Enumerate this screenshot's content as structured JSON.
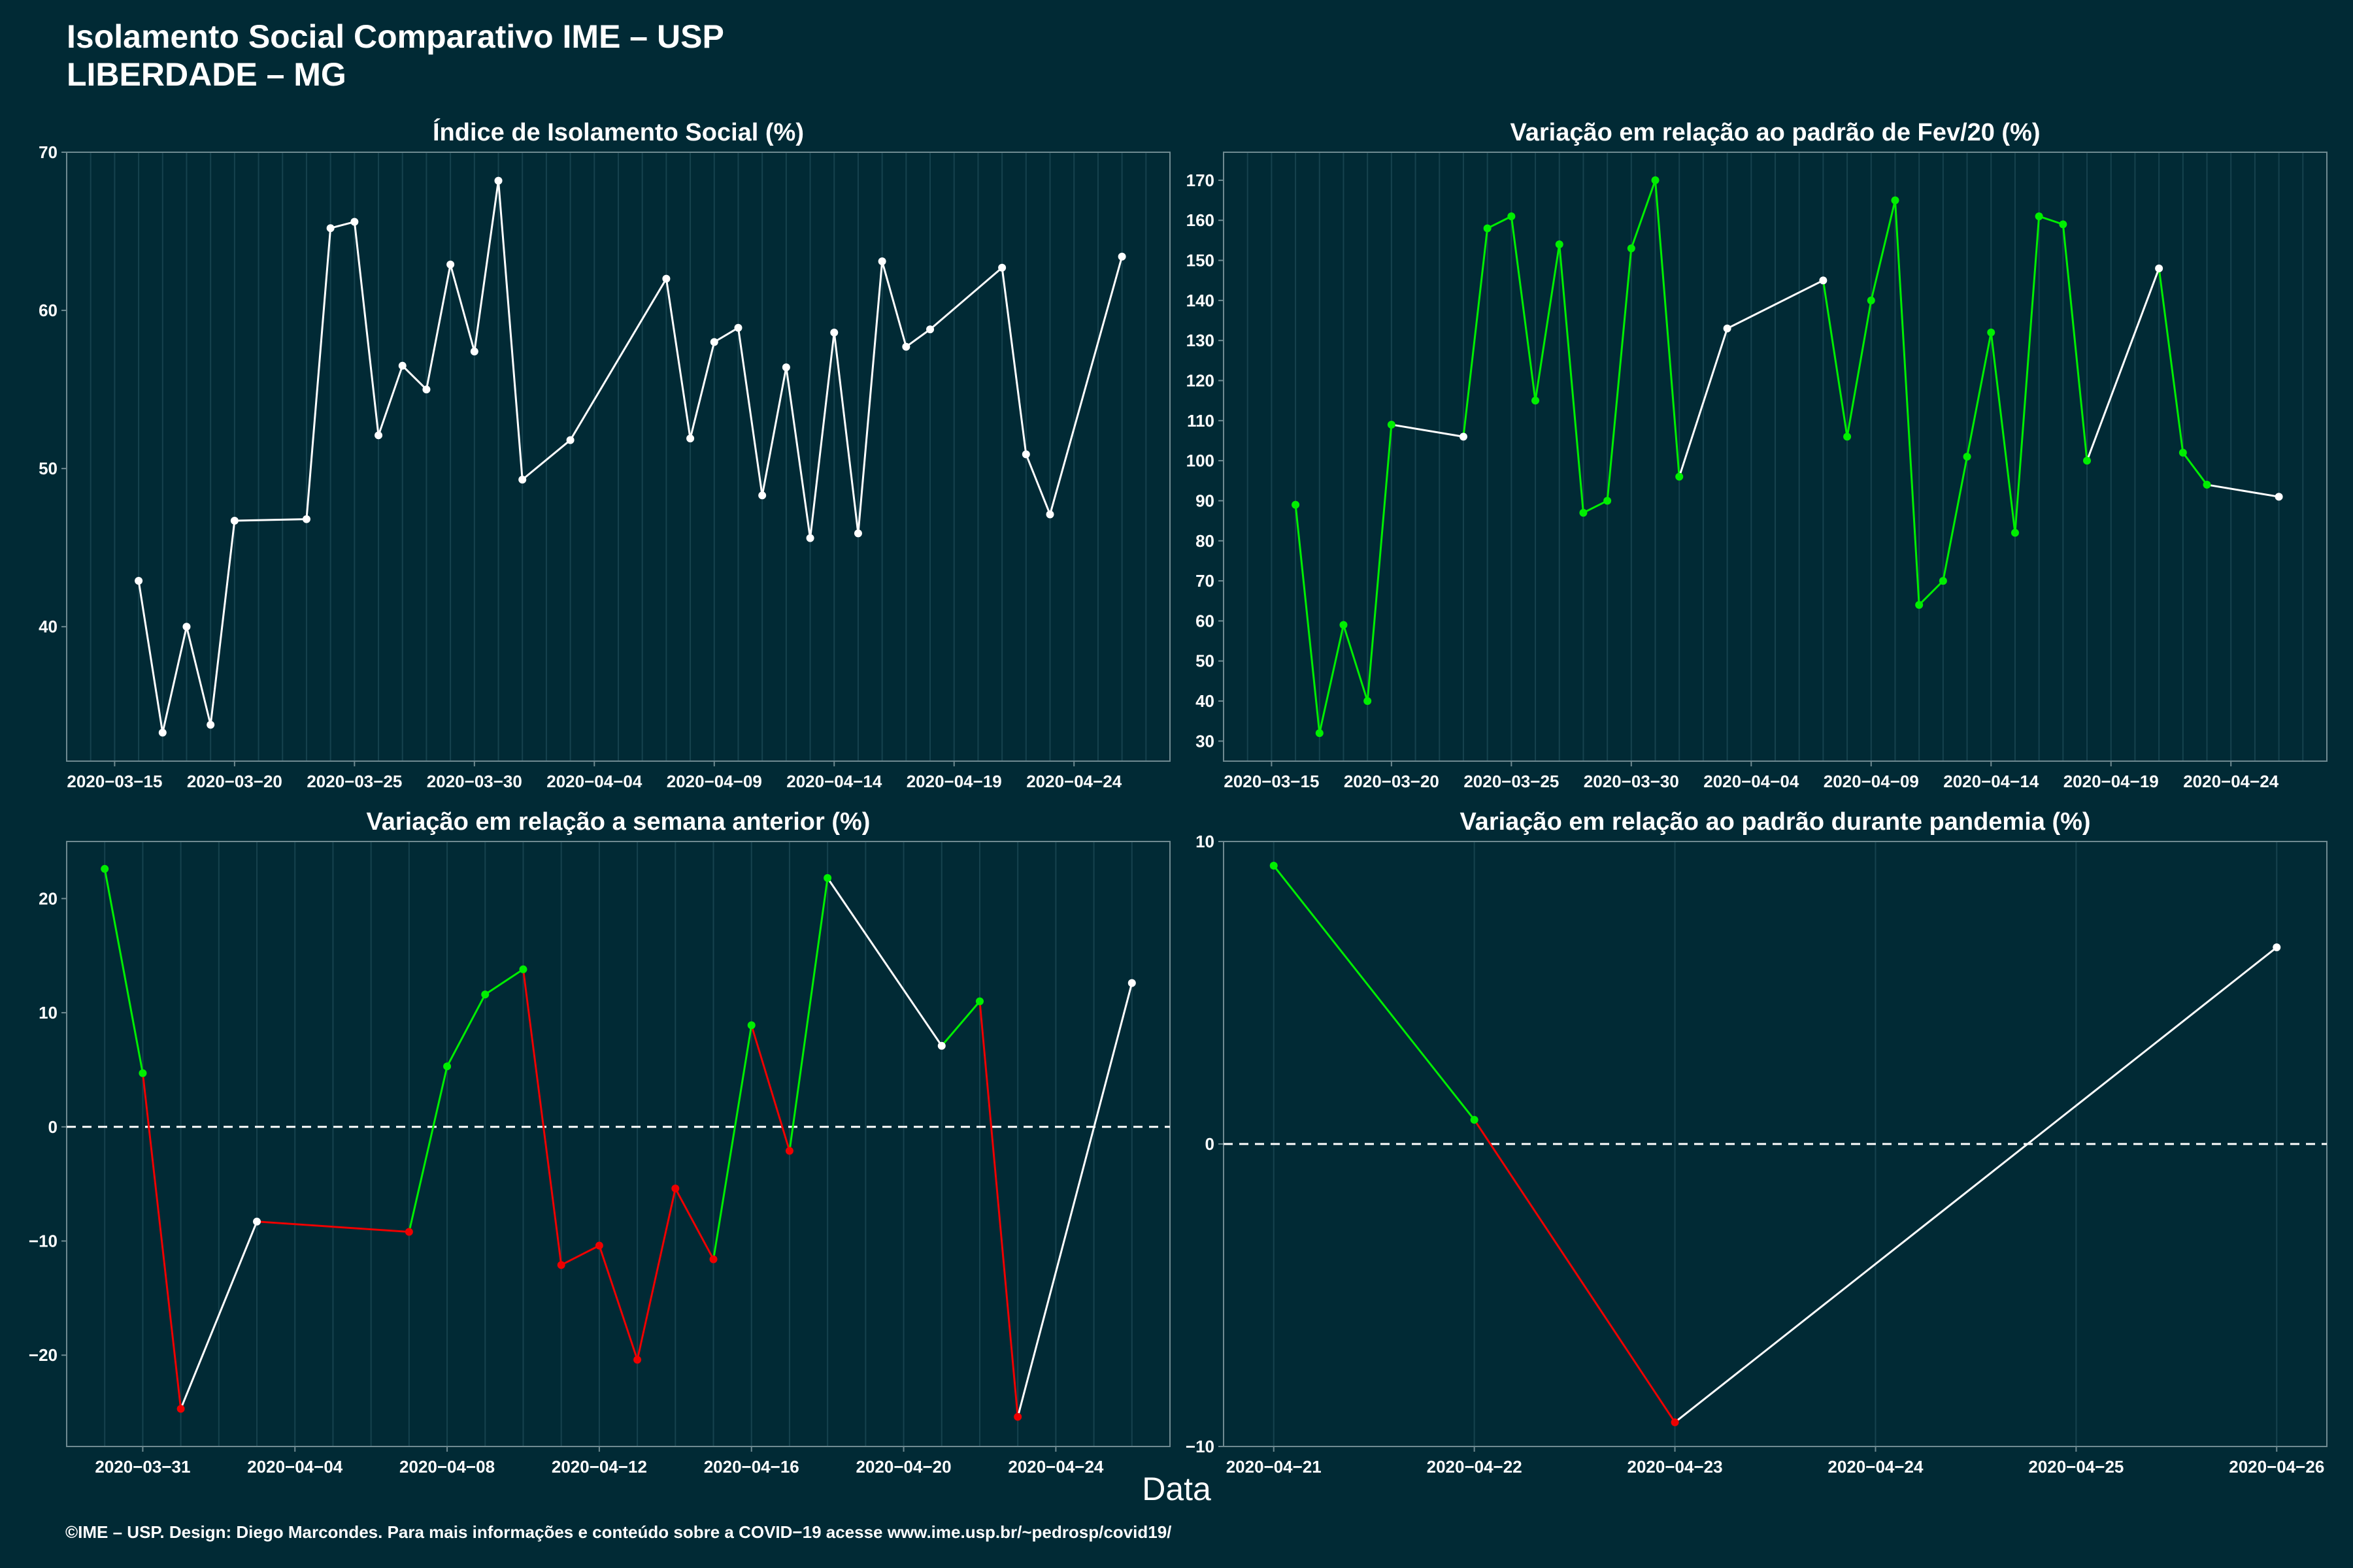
{
  "header": {
    "title_line1": "Isolamento Social Comparativo IME – USP",
    "title_line2": "LIBERDADE – MG"
  },
  "x_axis_title": "Data",
  "footer": "©IME – USP. Design: Diego Marcondes. Para mais informações e conteúdo sobre a COVID−19 acesse www.ime.usp.br/~pedrosp/covid19/",
  "colors": {
    "background": "#012a35",
    "neutral": "#ffffff",
    "increase": "#00ee00",
    "decrease": "#ee0000",
    "grid": "#16424e",
    "axis": "#6f8a91"
  },
  "chart_data": [
    {
      "type": "line",
      "title": "Índice de Isolamento Social (%)",
      "xlabel": "",
      "ylabel": "",
      "xlim": [
        "2020-03-13",
        "2020-04-28"
      ],
      "ylim": [
        31.5,
        70
      ],
      "yticks": [
        40,
        50,
        60,
        70
      ],
      "xticks": [
        "2020-03-15",
        "2020-03-20",
        "2020-03-25",
        "2020-03-30",
        "2020-04-04",
        "2020-04-09",
        "2020-04-14",
        "2020-04-19",
        "2020-04-24"
      ],
      "grid": true,
      "series": [
        {
          "color": "neutral",
          "points": [
            [
              "2020-03-16",
              42.9
            ],
            [
              "2020-03-17",
              33.3
            ],
            [
              "2020-03-18",
              40.0
            ],
            [
              "2020-03-19",
              33.8
            ],
            [
              "2020-03-20",
              46.7
            ],
            [
              "2020-03-23",
              46.8
            ],
            [
              "2020-03-24",
              65.2
            ],
            [
              "2020-03-25",
              65.6
            ],
            [
              "2020-03-26",
              52.1
            ],
            [
              "2020-03-27",
              56.5
            ],
            [
              "2020-03-28",
              55.0
            ],
            [
              "2020-03-29",
              62.9
            ],
            [
              "2020-03-30",
              57.4
            ],
            [
              "2020-03-31",
              68.2
            ],
            [
              "2020-04-01",
              49.3
            ],
            [
              "2020-04-03",
              51.8
            ],
            [
              "2020-04-07",
              62.0
            ],
            [
              "2020-04-08",
              51.9
            ],
            [
              "2020-04-09",
              58.0
            ],
            [
              "2020-04-10",
              58.9
            ],
            [
              "2020-04-11",
              48.3
            ],
            [
              "2020-04-12",
              56.4
            ],
            [
              "2020-04-13",
              45.6
            ],
            [
              "2020-04-14",
              58.6
            ],
            [
              "2020-04-15",
              45.9
            ],
            [
              "2020-04-16",
              63.1
            ],
            [
              "2020-04-17",
              57.7
            ],
            [
              "2020-04-18",
              58.8
            ],
            [
              "2020-04-21",
              62.7
            ],
            [
              "2020-04-22",
              50.9
            ],
            [
              "2020-04-23",
              47.1
            ],
            [
              "2020-04-26",
              63.4
            ]
          ]
        }
      ]
    },
    {
      "type": "line",
      "title": "Variação em relação ao padrão de Fev/20 (%)",
      "xlabel": "",
      "ylabel": "",
      "xlim": [
        "2020-03-13",
        "2020-04-28"
      ],
      "ylim": [
        25,
        177
      ],
      "yticks": [
        30,
        40,
        50,
        60,
        70,
        80,
        90,
        100,
        110,
        120,
        130,
        140,
        150,
        160,
        170
      ],
      "xticks": [
        "2020-03-15",
        "2020-03-20",
        "2020-03-25",
        "2020-03-30",
        "2020-04-04",
        "2020-04-09",
        "2020-04-14",
        "2020-04-19",
        "2020-04-24"
      ],
      "grid": true,
      "series": [
        {
          "points": [
            [
              "2020-03-16",
              89,
              "increase"
            ],
            [
              "2020-03-17",
              32,
              "increase"
            ],
            [
              "2020-03-18",
              59,
              "increase"
            ],
            [
              "2020-03-19",
              40,
              "increase"
            ],
            [
              "2020-03-20",
              109,
              "increase"
            ],
            [
              "2020-03-23",
              106,
              "neutral"
            ],
            [
              "2020-03-24",
              158,
              "increase"
            ],
            [
              "2020-03-25",
              161,
              "increase"
            ],
            [
              "2020-03-26",
              115,
              "increase"
            ],
            [
              "2020-03-27",
              154,
              "increase"
            ],
            [
              "2020-03-28",
              87,
              "increase"
            ],
            [
              "2020-03-29",
              90,
              "increase"
            ],
            [
              "2020-03-30",
              153,
              "increase"
            ],
            [
              "2020-03-31",
              170,
              "increase"
            ],
            [
              "2020-04-01",
              96,
              "increase"
            ],
            [
              "2020-04-03",
              133,
              "neutral"
            ],
            [
              "2020-04-07",
              145,
              "neutral"
            ],
            [
              "2020-04-08",
              106,
              "increase"
            ],
            [
              "2020-04-09",
              140,
              "increase"
            ],
            [
              "2020-04-10",
              165,
              "increase"
            ],
            [
              "2020-04-11",
              64,
              "increase"
            ],
            [
              "2020-04-12",
              70,
              "increase"
            ],
            [
              "2020-04-13",
              101,
              "increase"
            ],
            [
              "2020-04-14",
              132,
              "increase"
            ],
            [
              "2020-04-15",
              82,
              "increase"
            ],
            [
              "2020-04-16",
              161,
              "increase"
            ],
            [
              "2020-04-17",
              159,
              "increase"
            ],
            [
              "2020-04-18",
              100,
              "increase"
            ],
            [
              "2020-04-21",
              148,
              "neutral"
            ],
            [
              "2020-04-22",
              102,
              "increase"
            ],
            [
              "2020-04-23",
              94,
              "increase"
            ],
            [
              "2020-04-26",
              91,
              "neutral"
            ]
          ]
        }
      ]
    },
    {
      "type": "line",
      "title": "Variação em relação a semana anterior (%)",
      "xlabel": "",
      "ylabel": "",
      "xlim": [
        "2020-03-29",
        "2020-04-27"
      ],
      "ylim": [
        -28,
        25
      ],
      "yticks": [
        -20,
        -10,
        0,
        10,
        20
      ],
      "xticks": [
        "2020-03-31",
        "2020-04-04",
        "2020-04-08",
        "2020-04-12",
        "2020-04-16",
        "2020-04-20",
        "2020-04-24"
      ],
      "reference_line": 0,
      "grid": true,
      "series": [
        {
          "points": [
            [
              "2020-03-30",
              22.6,
              "increase"
            ],
            [
              "2020-03-31",
              4.7,
              "increase"
            ],
            [
              "2020-04-01",
              -24.7,
              "decrease"
            ],
            [
              "2020-04-03",
              -8.3,
              "neutral"
            ],
            [
              "2020-04-07",
              -9.2,
              "decrease"
            ],
            [
              "2020-04-08",
              5.3,
              "increase"
            ],
            [
              "2020-04-09",
              11.6,
              "increase"
            ],
            [
              "2020-04-10",
              13.8,
              "increase"
            ],
            [
              "2020-04-11",
              -12.1,
              "decrease"
            ],
            [
              "2020-04-12",
              -10.4,
              "decrease"
            ],
            [
              "2020-04-13",
              -20.4,
              "decrease"
            ],
            [
              "2020-04-14",
              -5.4,
              "decrease"
            ],
            [
              "2020-04-15",
              -11.6,
              "decrease"
            ],
            [
              "2020-04-16",
              8.9,
              "increase"
            ],
            [
              "2020-04-17",
              -2.1,
              "decrease"
            ],
            [
              "2020-04-18",
              21.8,
              "increase"
            ],
            [
              "2020-04-21",
              7.1,
              "neutral"
            ],
            [
              "2020-04-22",
              11.0,
              "increase"
            ],
            [
              "2020-04-23",
              -25.4,
              "decrease"
            ],
            [
              "2020-04-26",
              12.6,
              "neutral"
            ]
          ]
        }
      ]
    },
    {
      "type": "line",
      "title": "Variação em relação ao padrão durante pandemia (%)",
      "xlabel": "",
      "ylabel": "",
      "xlim": [
        "2020-04-20 18:00",
        "2020-04-26 06:00"
      ],
      "ylim": [
        -10,
        10
      ],
      "yticks": [
        -10,
        0,
        10
      ],
      "xticks": [
        "2020-04-21",
        "2020-04-22",
        "2020-04-23",
        "2020-04-24",
        "2020-04-25",
        "2020-04-26"
      ],
      "reference_line": 0,
      "grid": true,
      "series": [
        {
          "points": [
            [
              "2020-04-21",
              9.2,
              "increase"
            ],
            [
              "2020-04-22",
              0.8,
              "increase"
            ],
            [
              "2020-04-23",
              -9.2,
              "decrease"
            ],
            [
              "2020-04-26",
              6.5,
              "neutral"
            ]
          ]
        }
      ]
    }
  ]
}
